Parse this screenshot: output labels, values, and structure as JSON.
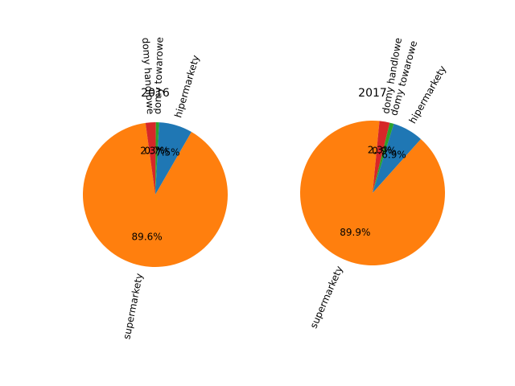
{
  "chart_data": [
    {
      "type": "pie",
      "title": "2016",
      "labels": [
        "hipermarkety",
        "supermarkety",
        "domy handlowe",
        "domy towarowe"
      ],
      "values": [
        7.5,
        89.6,
        2.3,
        0.7
      ],
      "percent_labels": [
        "7.5%",
        "89.6%",
        "2.3%",
        "0.7%"
      ],
      "colors": [
        "#1f77b4",
        "#ff7f0e",
        "#d62728",
        "#2ca02c"
      ],
      "start_angle_deg": 87,
      "counterclockwise": false,
      "legend": "none"
    },
    {
      "type": "pie",
      "title": "2017",
      "labels": [
        "hipermarkety",
        "supermarkety",
        "domy handlowe",
        "domy towarowe"
      ],
      "values": [
        6.9,
        89.9,
        2.3,
        0.9
      ],
      "percent_labels": [
        "6.9%",
        "89.9%",
        "2.3%",
        "0.9%"
      ],
      "colors": [
        "#1f77b4",
        "#ff7f0e",
        "#d62728",
        "#2ca02c"
      ],
      "start_angle_deg": 73,
      "counterclockwise": false,
      "legend": "none"
    }
  ]
}
